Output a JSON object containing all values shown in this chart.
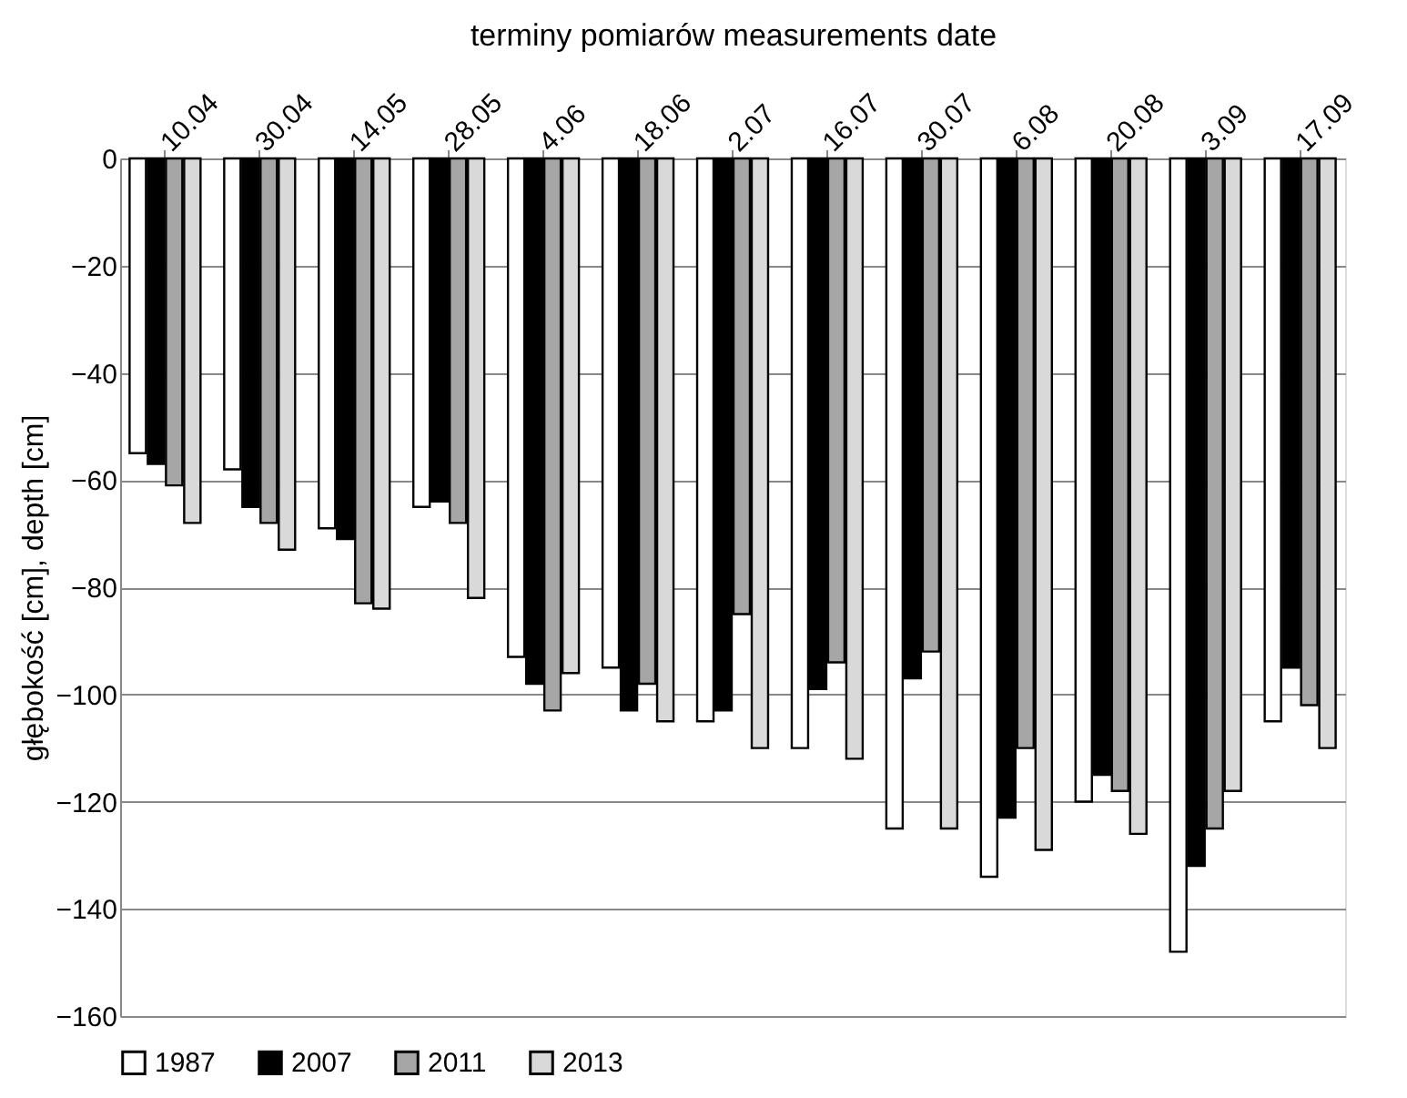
{
  "chart_data": {
    "type": "bar",
    "xlabel": "terminy pomiarów     measurements date",
    "ylabel": "głębokość [cm], depth [cm]",
    "categories": [
      "10.04",
      "30.04",
      "14.05",
      "28.05",
      "4.06",
      "18.06",
      "2.07",
      "16.07",
      "30.07",
      "6.08",
      "20.08",
      "3.09",
      "17.09"
    ],
    "series": [
      {
        "name": "1987",
        "color": "#ffffff",
        "values": [
          -55,
          -58,
          -69,
          -65,
          -93,
          -95,
          -105,
          -110,
          -125,
          -134,
          -120,
          -148,
          -105
        ]
      },
      {
        "name": "2007",
        "color": "#000000",
        "values": [
          -57,
          -65,
          -71,
          -64,
          -98,
          -103,
          -103,
          -99,
          -97,
          -123,
          -115,
          -132,
          -95
        ]
      },
      {
        "name": "2011",
        "color": "#a6a6a6",
        "values": [
          -61,
          -68,
          -83,
          -68,
          -103,
          -98,
          -85,
          -94,
          -92,
          -110,
          -118,
          -125,
          -102
        ]
      },
      {
        "name": "2013",
        "color": "#d9d9d9",
        "values": [
          -68,
          -73,
          -84,
          -82,
          -96,
          -105,
          -110,
          -112,
          -125,
          -129,
          -126,
          -118,
          -110
        ]
      }
    ],
    "ylim": [
      -160,
      0
    ],
    "yticks": [
      -160,
      -140,
      -120,
      -100,
      -80,
      -60,
      -40,
      -20,
      0
    ],
    "grid": "y",
    "legend": "bottom"
  }
}
